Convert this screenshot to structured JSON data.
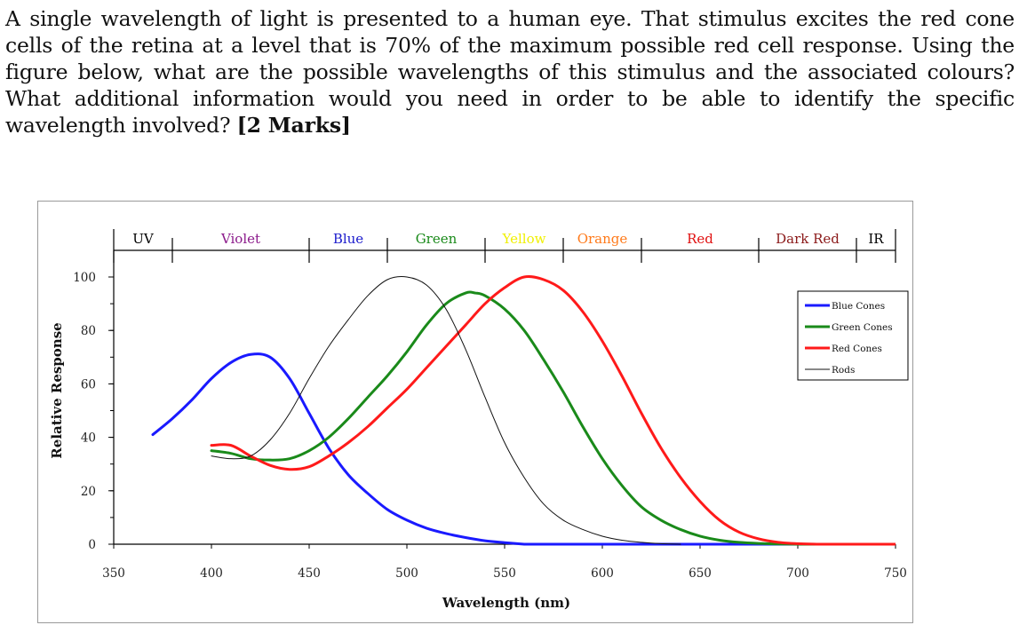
{
  "question": {
    "text": "A single wavelength of light is presented to a human eye. That stimulus excites the red cone cells of the retina at a level that is 70% of the maximum possible red cell response. Using the figure below, what are the possible wavelengths of this stimulus and the associated colours? What additional information would you need in order to be able to identify the specific wavelength involved?",
    "marks": "[2 Marks]"
  },
  "chart_data": {
    "type": "line",
    "title": "",
    "xlabel": "Wavelength (nm)",
    "ylabel": "Relative Response",
    "xlim": [
      350,
      750
    ],
    "ylim": [
      0,
      100
    ],
    "x_ticks": [
      "350",
      "400",
      "450",
      "500",
      "550",
      "600",
      "650",
      "700",
      "750"
    ],
    "y_ticks": [
      "0",
      "20",
      "40",
      "60",
      "80",
      "100"
    ],
    "grid": false,
    "legend_position": "top-right",
    "bands": [
      {
        "label": "UV",
        "from": 350,
        "to": 380,
        "color": "#000000"
      },
      {
        "label": "Violet",
        "from": 380,
        "to": 450,
        "color": "#8b1a8b"
      },
      {
        "label": "Blue",
        "from": 450,
        "to": 490,
        "color": "#1a1acc"
      },
      {
        "label": "Green",
        "from": 490,
        "to": 540,
        "color": "#1a8a1a"
      },
      {
        "label": "Yellow",
        "from": 540,
        "to": 580,
        "color": "#f0f000"
      },
      {
        "label": "Orange",
        "from": 580,
        "to": 620,
        "color": "#ff7a1a"
      },
      {
        "label": "Red",
        "from": 620,
        "to": 680,
        "color": "#e01010"
      },
      {
        "label": "Dark Red",
        "from": 680,
        "to": 730,
        "color": "#8b1a1a"
      },
      {
        "label": "IR",
        "from": 730,
        "to": 750,
        "color": "#000000"
      }
    ],
    "series": [
      {
        "name": "Blue Cones",
        "color": "#1a1aff",
        "width": 3,
        "x": [
          370,
          380,
          390,
          400,
          410,
          420,
          430,
          440,
          450,
          460,
          470,
          480,
          490,
          500,
          510,
          520,
          530,
          540,
          550,
          560
        ],
        "y": [
          41,
          47,
          54,
          62,
          68,
          71,
          70,
          62,
          49,
          36,
          26,
          19,
          13,
          9,
          6,
          4,
          2.5,
          1.3,
          0.6,
          0
        ]
      },
      {
        "name": "Green Cones",
        "color": "#1a8a1a",
        "width": 3,
        "x": [
          400,
          410,
          420,
          430,
          440,
          450,
          460,
          470,
          480,
          490,
          500,
          510,
          520,
          530,
          535,
          540,
          550,
          560,
          570,
          580,
          590,
          600,
          610,
          620,
          630,
          640,
          650,
          660,
          670,
          680,
          690,
          700,
          710,
          720
        ],
        "y": [
          35,
          34,
          32,
          31.5,
          32,
          35,
          40,
          47,
          55,
          63,
          72,
          82,
          90,
          94,
          94,
          93,
          88,
          80,
          69,
          57,
          44,
          32,
          22,
          14,
          9,
          5.5,
          3,
          1.5,
          0.7,
          0.3,
          0.1,
          0,
          0,
          0
        ]
      },
      {
        "name": "Red Cones",
        "color": "#ff1a1a",
        "width": 3,
        "x": [
          400,
          410,
          420,
          430,
          440,
          450,
          460,
          470,
          480,
          490,
          500,
          510,
          520,
          530,
          540,
          550,
          560,
          570,
          580,
          590,
          600,
          610,
          620,
          630,
          640,
          650,
          660,
          670,
          680,
          690,
          700,
          710
        ],
        "y": [
          37,
          37,
          33,
          29.5,
          28,
          29,
          33,
          38,
          44,
          51,
          58,
          66,
          74,
          82,
          90,
          96,
          100,
          99,
          95,
          87,
          76,
          63,
          49,
          36,
          25,
          16,
          9,
          4.5,
          2,
          0.7,
          0.2,
          0
        ]
      },
      {
        "name": "Rods",
        "color": "#111111",
        "width": 1,
        "x": [
          400,
          410,
          420,
          430,
          440,
          450,
          460,
          470,
          480,
          490,
          500,
          510,
          520,
          530,
          540,
          550,
          560,
          570,
          580,
          590,
          600,
          610,
          620,
          630,
          640
        ],
        "y": [
          33,
          32,
          33,
          39,
          49,
          62,
          74,
          84,
          93,
          99,
          100,
          97,
          88,
          73,
          55,
          38,
          25,
          15,
          9,
          5.5,
          3,
          1.5,
          0.7,
          0.2,
          0
        ]
      }
    ]
  }
}
